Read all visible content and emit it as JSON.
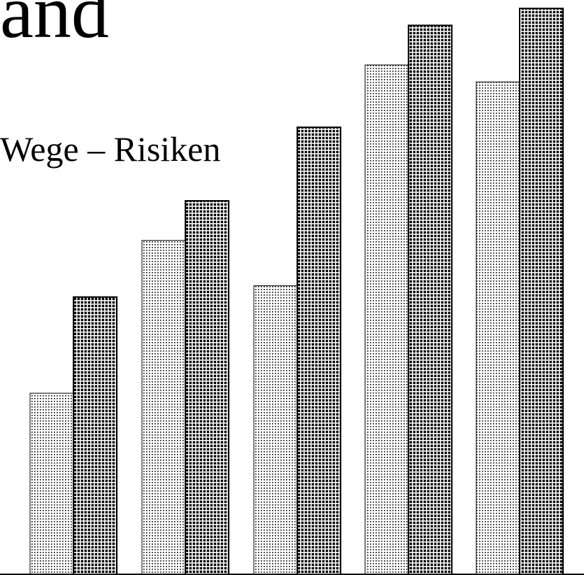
{
  "heading": {
    "title_fragment": "and",
    "subtitle": "Wege – Risiken"
  },
  "colors": {
    "ink": "#000000",
    "background": "#ffffff"
  },
  "chart_data": {
    "type": "bar",
    "title": "",
    "xlabel": "",
    "ylabel": "",
    "categories": [
      "",
      "",
      "",
      "",
      ""
    ],
    "ylim": [
      0,
      100
    ],
    "grid": false,
    "legend": "none",
    "series": [
      {
        "pattern": "fine-dots",
        "values": [
          32,
          59,
          51,
          90,
          87
        ]
      },
      {
        "pattern": "coarse-dots",
        "values": [
          49,
          66,
          79,
          97,
          100
        ]
      }
    ]
  }
}
